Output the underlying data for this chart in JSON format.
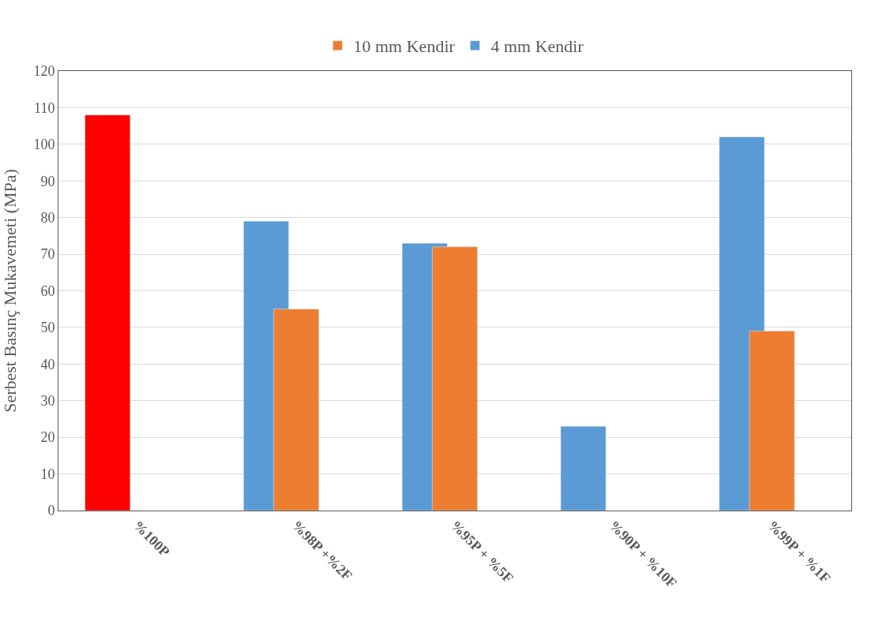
{
  "chart_data": {
    "type": "bar",
    "ylabel": "Serbest Basınç Mukavemeti (MPa)",
    "categories": [
      "%100P",
      "%98P +%2F",
      "%95P + %5F",
      "%90P + %10F",
      "%99P + %1F"
    ],
    "series": [
      {
        "name": "4 mm Kendir",
        "color": "#5b9bd5",
        "colors": [
          "#ff0000",
          "#5b9bd5",
          "#5b9bd5",
          "#5b9bd5",
          "#5b9bd5"
        ],
        "values": [
          108,
          79,
          73,
          23,
          102
        ]
      },
      {
        "name": "10 mm Kendir",
        "color": "#ed7d31",
        "values": [
          null,
          55,
          72,
          null,
          49
        ]
      }
    ],
    "ylim": [
      0,
      120
    ],
    "yticks": [
      0,
      10,
      20,
      30,
      40,
      50,
      60,
      70,
      80,
      90,
      100,
      110,
      120
    ],
    "grid": "y",
    "legend": "top"
  }
}
